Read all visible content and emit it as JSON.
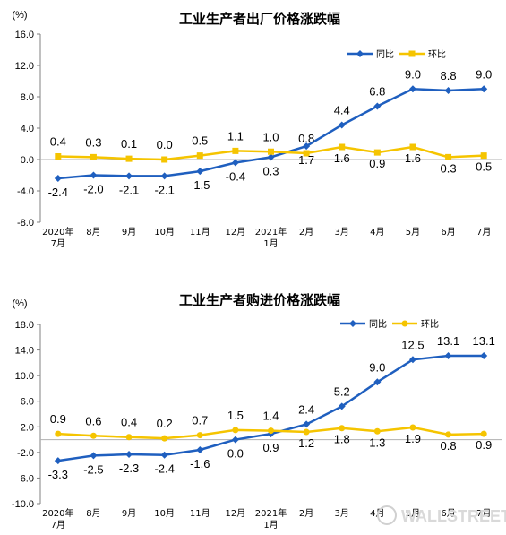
{
  "chart_data": [
    {
      "type": "line",
      "title": "工业生产者出厂价格涨跌幅",
      "unit": "(%)",
      "categories": [
        [
          "2020年",
          "7月"
        ],
        [
          "8月"
        ],
        [
          "9月"
        ],
        [
          "10月"
        ],
        [
          "11月"
        ],
        [
          "12月"
        ],
        [
          "2021年",
          "1月"
        ],
        [
          "2月"
        ],
        [
          "3月"
        ],
        [
          "4月"
        ],
        [
          "5月"
        ],
        [
          "6月"
        ],
        [
          "7月"
        ]
      ],
      "ylim": [
        -8.0,
        16.0
      ],
      "yticks": [
        "16.0",
        "12.0",
        "8.0",
        "4.0",
        "0.0",
        "-4.0",
        "-8.0"
      ],
      "ytick_values": [
        16,
        12,
        8,
        4,
        0,
        -4,
        -8
      ],
      "legend_position": "top-right",
      "series": [
        {
          "name": "同比",
          "color": "#1f5fbf",
          "marker": "diamond",
          "values": [
            -2.4,
            -2.0,
            -2.1,
            -2.1,
            -1.5,
            -0.4,
            0.3,
            1.7,
            4.4,
            6.8,
            9.0,
            8.8,
            9.0
          ],
          "labels": [
            "-2.4",
            "-2.0",
            "-2.1",
            "-2.1",
            "-1.5",
            "-0.4",
            "0.3",
            "1.7",
            "4.4",
            "6.8",
            "9.0",
            "8.8",
            "9.0"
          ]
        },
        {
          "name": "环比",
          "color": "#f5c400",
          "marker": "square",
          "values": [
            0.4,
            0.3,
            0.1,
            0.0,
            0.5,
            1.1,
            1.0,
            0.8,
            1.6,
            0.9,
            1.6,
            0.3,
            0.5
          ],
          "labels": [
            "0.4",
            "0.3",
            "0.1",
            "0.0",
            "0.5",
            "1.1",
            "1.0",
            "0.8",
            "1.6",
            "0.9",
            "1.6",
            "0.3",
            "0.5"
          ]
        }
      ]
    },
    {
      "type": "line",
      "title": "工业生产者购进价格涨跌幅",
      "unit": "(%)",
      "categories": [
        [
          "2020年",
          "7月"
        ],
        [
          "8月"
        ],
        [
          "9月"
        ],
        [
          "10月"
        ],
        [
          "11月"
        ],
        [
          "12月"
        ],
        [
          "2021年",
          "1月"
        ],
        [
          "2月"
        ],
        [
          "3月"
        ],
        [
          "4月"
        ],
        [
          "5月"
        ],
        [
          "6月"
        ],
        [
          "7月"
        ]
      ],
      "ylim": [
        -10.0,
        18.0
      ],
      "yticks": [
        "18.0",
        "14.0",
        "10.0",
        "6.0",
        "2.0",
        "-2.0",
        "-6.0",
        "-10.0"
      ],
      "ytick_values": [
        18,
        14,
        10,
        6,
        2,
        -2,
        -6,
        -10
      ],
      "legend_position": "top-right",
      "series": [
        {
          "name": "同比",
          "color": "#1f5fbf",
          "marker": "diamond",
          "values": [
            -3.3,
            -2.5,
            -2.3,
            -2.4,
            -1.6,
            0.0,
            0.9,
            2.4,
            5.2,
            9.0,
            12.5,
            13.1,
            13.1
          ],
          "labels": [
            "-3.3",
            "-2.5",
            "-2.3",
            "-2.4",
            "-1.6",
            "0.0",
            "0.9",
            "2.4",
            "5.2",
            "9.0",
            "12.5",
            "13.1",
            "13.1"
          ]
        },
        {
          "name": "环比",
          "color": "#f5c400",
          "marker": "circle",
          "values": [
            0.9,
            0.6,
            0.4,
            0.2,
            0.7,
            1.5,
            1.4,
            1.2,
            1.8,
            1.3,
            1.9,
            0.8,
            0.9
          ],
          "labels": [
            "0.9",
            "0.6",
            "0.4",
            "0.2",
            "0.7",
            "1.5",
            "1.4",
            "1.2",
            "1.8",
            "1.3",
            "1.9",
            "0.8",
            "0.9"
          ]
        }
      ]
    }
  ],
  "watermark": "WALLSTREETCN"
}
